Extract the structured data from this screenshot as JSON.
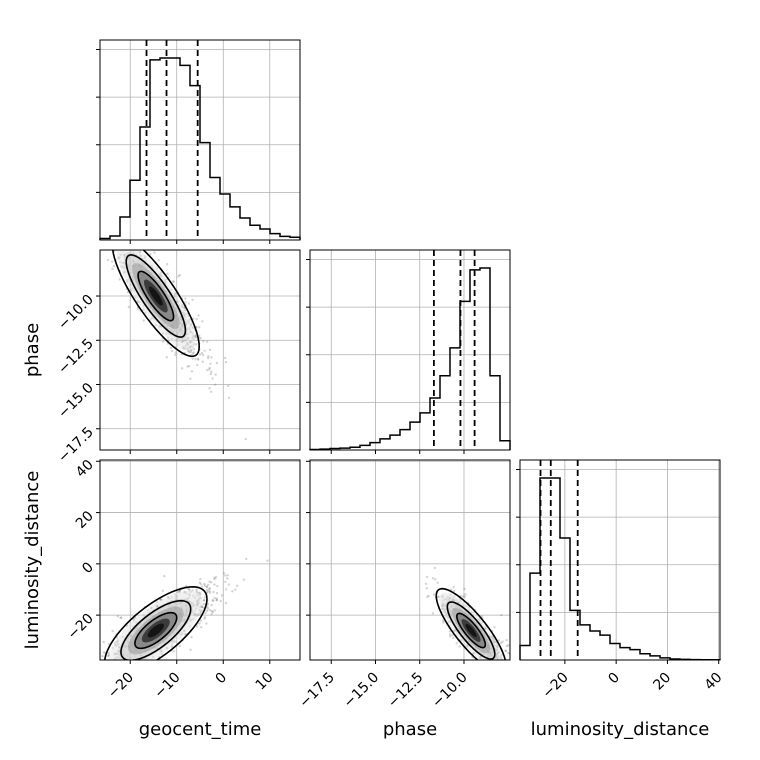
{
  "chart_data": {
    "type": "corner",
    "parameters": [
      "geocent_time",
      "phase",
      "luminosity_distance"
    ],
    "axis_labels": {
      "x": [
        "geocent_time",
        "phase",
        "luminosity_distance"
      ],
      "y": [
        "",
        "phase",
        "luminosity_distance"
      ]
    },
    "ranges": {
      "geocent_time": [
        -26.5,
        16.5
      ],
      "phase": [
        -18.7,
        -7.4
      ],
      "luminosity_distance": [
        -37.5,
        40.5
      ]
    },
    "ticks": {
      "geocent_time": [
        -20,
        -10,
        0,
        10
      ],
      "phase": [
        -17.5,
        -15.0,
        -12.5,
        -10.0
      ],
      "luminosity_distance": [
        -20,
        0,
        20,
        40
      ]
    },
    "tick_labels": {
      "geocent_time": [
        "−20",
        "−10",
        "0",
        "10"
      ],
      "phase": [
        "−17.5",
        "−15.0",
        "−12.5",
        "−10.0"
      ],
      "luminosity_distance": [
        "−20",
        "0",
        "20",
        "40"
      ]
    },
    "histograms": {
      "geocent_time": {
        "bin_start": -26.5,
        "bin_width": 2.15,
        "counts": [
          0.8,
          2.2,
          12.5,
          32.5,
          61.5,
          98,
          99,
          99,
          95,
          84,
          53,
          34,
          25,
          18,
          12,
          8,
          6,
          3.5,
          2,
          1.5
        ],
        "quantiles": [
          -16.5,
          -12.2,
          -5.5
        ]
      },
      "phase": {
        "bin_start": -18.7,
        "bin_width": 0.565,
        "counts": [
          0.3,
          0.5,
          0.8,
          1,
          1.5,
          2.5,
          4,
          6,
          8,
          11,
          15,
          20,
          28,
          40,
          55,
          80,
          97,
          98,
          40,
          5
        ],
        "quantiles": [
          -11.7,
          -10.2,
          -9.4
        ]
      },
      "luminosity_distance": {
        "bin_start": -37.5,
        "bin_width": 3.9,
        "counts": [
          7,
          42,
          88,
          88,
          59,
          24,
          17,
          14,
          12,
          8,
          6,
          5,
          3,
          2,
          1,
          0.5,
          0.3,
          0.2,
          0.1,
          0.1
        ],
        "quantiles": [
          -29.5,
          -25.5,
          -15.0
        ]
      }
    },
    "joint": [
      {
        "x": "geocent_time",
        "y": "phase",
        "mode": [
          -14.5,
          -10.0
        ],
        "cov": [
          [
            18,
            -5.5
          ],
          [
            -5.5,
            2.4
          ]
        ]
      },
      {
        "x": "geocent_time",
        "y": "luminosity_distance",
        "mode": [
          -14.5,
          -26.0
        ],
        "cov": [
          [
            25,
            28
          ],
          [
            28,
            60
          ]
        ]
      },
      {
        "x": "phase",
        "y": "luminosity_distance",
        "mode": [
          -9.6,
          -26.0
        ],
        "cov": [
          [
            0.8,
            -5.5
          ],
          [
            -5.5,
            55
          ]
        ]
      }
    ],
    "grid": true,
    "style": {
      "line_color": "#000000",
      "grid_color": "#b0b0b0",
      "scatter_color": "#555555"
    }
  }
}
